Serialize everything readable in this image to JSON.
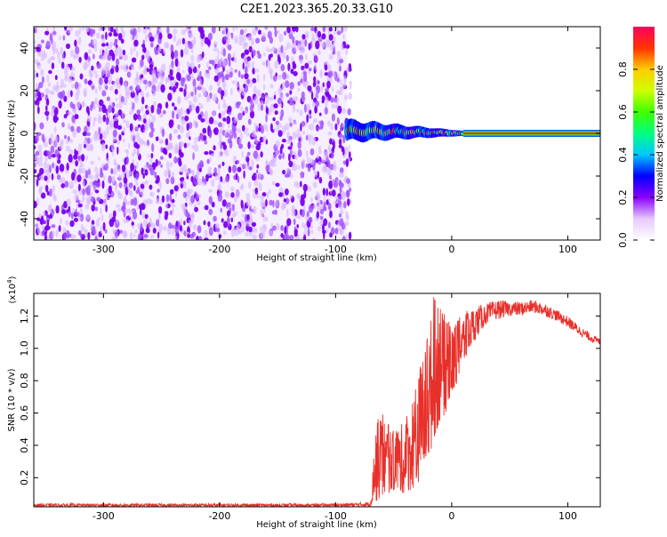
{
  "title": "C2E1.2023.365.20.33.G10",
  "chart_data": [
    {
      "type": "heatmap",
      "xlabel": "Height of straight line (km)",
      "ylabel": "Frequency (Hz)",
      "xlim": [
        -360,
        128
      ],
      "ylim": [
        -50,
        50
      ],
      "xticks": [
        -300,
        -200,
        -100,
        0,
        100
      ],
      "yticks": [
        -40,
        -20,
        0,
        20,
        40
      ],
      "grid": false,
      "noise_region_x": [
        -360,
        -90
      ],
      "signal_band": {
        "x_start": -90,
        "x_end": 128,
        "center_freq": 0
      },
      "colorbar": {
        "label": "Normalized spectral amplitude",
        "range": [
          0.0,
          1.0
        ],
        "ticks": [
          0.0,
          0.2,
          0.4,
          0.6,
          0.8
        ],
        "colormap": [
          "#ffffff",
          "#e6c8ff",
          "#8a00ff",
          "#0000ff",
          "#00c8ff",
          "#00ff80",
          "#40ff00",
          "#d0ff00",
          "#ffcc00",
          "#ff3300",
          "#ff0060"
        ]
      }
    },
    {
      "type": "line",
      "xlabel": "Height of straight line (km)",
      "ylabel": "SNR (10 * v/v)",
      "y_multiplier": "(x10",
      "y_multiplier_exp": "4",
      "xlim": [
        -360,
        128
      ],
      "ylim": [
        0.02,
        1.34
      ],
      "xticks": [
        -300,
        -200,
        -100,
        0,
        100
      ],
      "yticks": [
        0.2,
        0.4,
        0.6,
        0.8,
        1.0,
        1.2
      ],
      "grid": false,
      "color": "#e8302a",
      "envelope": {
        "x": [
          -360,
          -200,
          -100,
          -70,
          -65,
          -60,
          -50,
          -40,
          -30,
          -20,
          -15,
          -10,
          -5,
          0,
          10,
          20,
          30,
          40,
          50,
          60,
          70,
          80,
          90,
          100,
          110,
          120,
          128
        ],
        "lo": [
          0.02,
          0.02,
          0.02,
          0.02,
          0.05,
          0.08,
          0.12,
          0.1,
          0.15,
          0.3,
          0.45,
          0.55,
          0.6,
          0.7,
          0.9,
          1.05,
          1.15,
          1.18,
          1.2,
          1.2,
          1.22,
          1.2,
          1.17,
          1.13,
          1.08,
          1.04,
          1.02
        ],
        "hi": [
          0.04,
          0.04,
          0.04,
          0.05,
          0.55,
          0.6,
          0.5,
          0.55,
          0.8,
          1.1,
          1.34,
          1.25,
          1.2,
          1.15,
          1.22,
          1.26,
          1.28,
          1.3,
          1.29,
          1.29,
          1.3,
          1.28,
          1.24,
          1.2,
          1.14,
          1.09,
          1.06
        ]
      }
    }
  ]
}
